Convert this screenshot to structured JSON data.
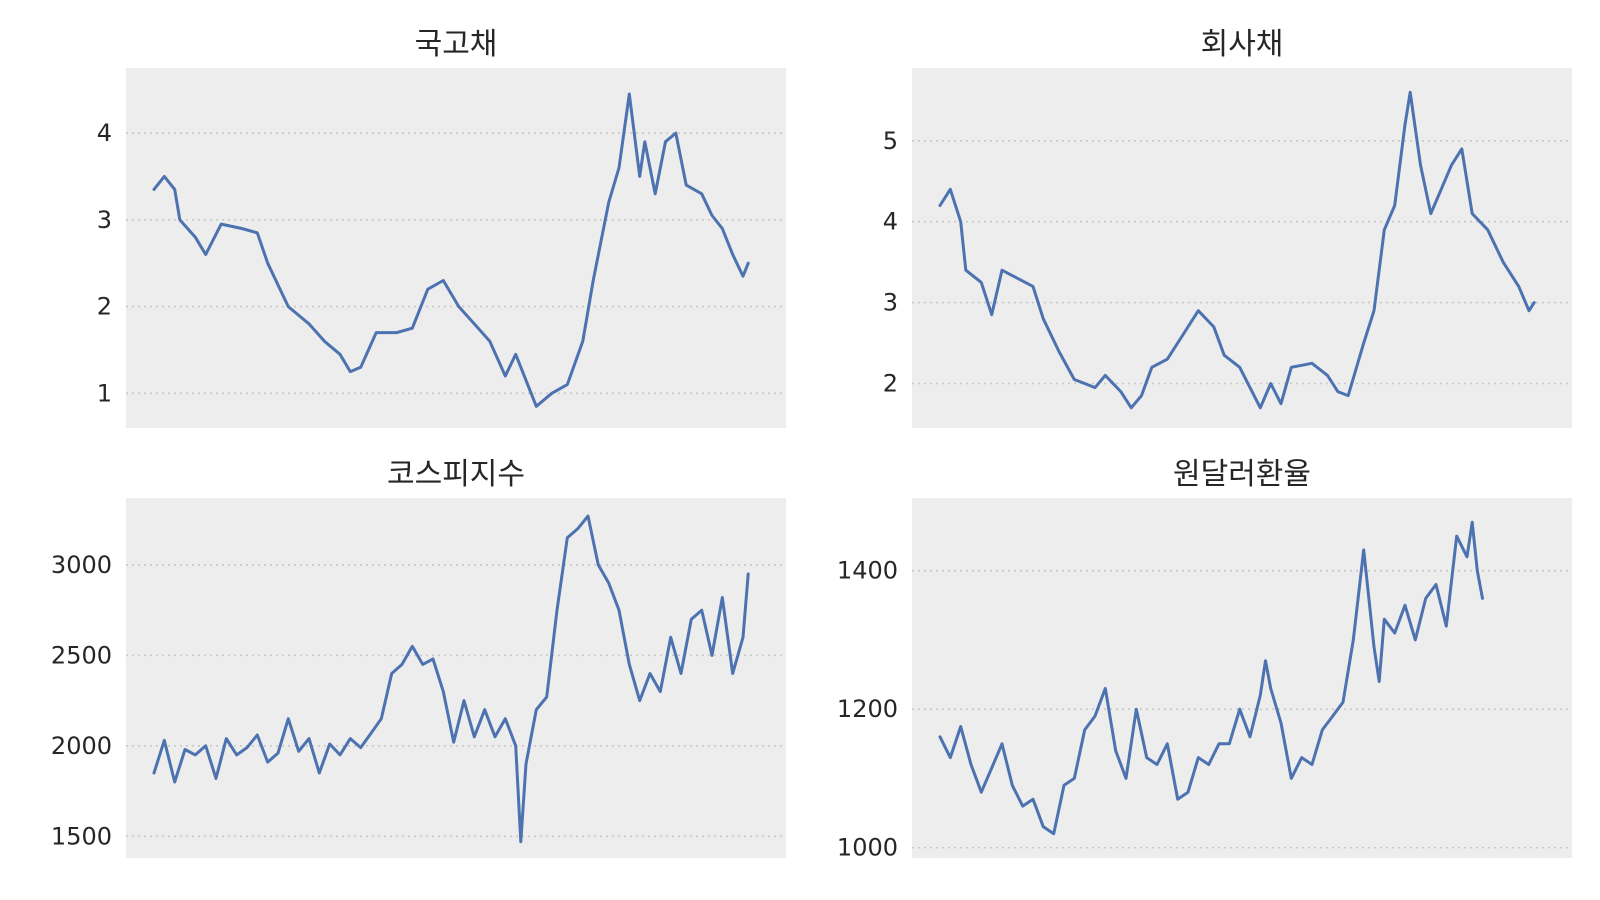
{
  "colors": {
    "line": "#4c72b0",
    "panel_bg": "#ededed",
    "grid": "#c8c8c8",
    "text": "#262626"
  },
  "chart_data": [
    {
      "type": "line",
      "title": "국고채",
      "xlabel": "",
      "ylabel": "",
      "ylim": [
        0.6,
        4.75
      ],
      "yticks": [
        1,
        2,
        3,
        4
      ],
      "ytick_labels": [
        "1",
        "2",
        "3",
        "4"
      ],
      "grid": "horizontal-dotted",
      "series": [
        {
          "values": [
            [
              0,
              3.35
            ],
            [
              0.02,
              3.5
            ],
            [
              0.04,
              3.35
            ],
            [
              0.05,
              3.0
            ],
            [
              0.08,
              2.8
            ],
            [
              0.1,
              2.6
            ],
            [
              0.13,
              2.95
            ],
            [
              0.17,
              2.9
            ],
            [
              0.2,
              2.85
            ],
            [
              0.22,
              2.5
            ],
            [
              0.26,
              2.0
            ],
            [
              0.3,
              1.8
            ],
            [
              0.33,
              1.6
            ],
            [
              0.36,
              1.45
            ],
            [
              0.38,
              1.25
            ],
            [
              0.4,
              1.3
            ],
            [
              0.43,
              1.7
            ],
            [
              0.47,
              1.7
            ],
            [
              0.5,
              1.75
            ],
            [
              0.53,
              2.2
            ],
            [
              0.56,
              2.3
            ],
            [
              0.59,
              2.0
            ],
            [
              0.62,
              1.8
            ],
            [
              0.65,
              1.6
            ],
            [
              0.68,
              1.2
            ],
            [
              0.7,
              1.45
            ],
            [
              0.72,
              1.15
            ],
            [
              0.74,
              0.85
            ],
            [
              0.77,
              1.0
            ],
            [
              0.8,
              1.1
            ],
            [
              0.83,
              1.6
            ],
            [
              0.85,
              2.3
            ],
            [
              0.88,
              3.2
            ],
            [
              0.9,
              3.6
            ],
            [
              0.92,
              4.45
            ],
            [
              0.94,
              3.5
            ],
            [
              0.95,
              3.9
            ],
            [
              0.97,
              3.3
            ],
            [
              0.99,
              3.9
            ],
            [
              1.01,
              4.0
            ],
            [
              1.03,
              3.4
            ],
            [
              1.06,
              3.3
            ],
            [
              1.08,
              3.05
            ],
            [
              1.1,
              2.9
            ],
            [
              1.12,
              2.6
            ],
            [
              1.14,
              2.35
            ],
            [
              1.15,
              2.5
            ]
          ]
        }
      ]
    },
    {
      "type": "line",
      "title": "회사채",
      "xlabel": "",
      "ylabel": "",
      "ylim": [
        1.45,
        5.9
      ],
      "yticks": [
        2,
        3,
        4,
        5
      ],
      "ytick_labels": [
        "2",
        "3",
        "4",
        "5"
      ],
      "grid": "horizontal-dotted",
      "series": [
        {
          "values": [
            [
              0,
              4.2
            ],
            [
              0.02,
              4.4
            ],
            [
              0.04,
              4.0
            ],
            [
              0.05,
              3.4
            ],
            [
              0.08,
              3.25
            ],
            [
              0.1,
              2.85
            ],
            [
              0.12,
              3.4
            ],
            [
              0.15,
              3.3
            ],
            [
              0.18,
              3.2
            ],
            [
              0.2,
              2.8
            ],
            [
              0.23,
              2.4
            ],
            [
              0.26,
              2.05
            ],
            [
              0.28,
              2.0
            ],
            [
              0.3,
              1.95
            ],
            [
              0.32,
              2.1
            ],
            [
              0.35,
              1.9
            ],
            [
              0.37,
              1.7
            ],
            [
              0.39,
              1.85
            ],
            [
              0.41,
              2.2
            ],
            [
              0.44,
              2.3
            ],
            [
              0.47,
              2.6
            ],
            [
              0.5,
              2.9
            ],
            [
              0.53,
              2.7
            ],
            [
              0.55,
              2.35
            ],
            [
              0.58,
              2.2
            ],
            [
              0.6,
              1.95
            ],
            [
              0.62,
              1.7
            ],
            [
              0.64,
              2.0
            ],
            [
              0.66,
              1.75
            ],
            [
              0.68,
              2.2
            ],
            [
              0.72,
              2.25
            ],
            [
              0.75,
              2.1
            ],
            [
              0.77,
              1.9
            ],
            [
              0.79,
              1.85
            ],
            [
              0.82,
              2.5
            ],
            [
              0.84,
              2.9
            ],
            [
              0.86,
              3.9
            ],
            [
              0.88,
              4.2
            ],
            [
              0.9,
              5.2
            ],
            [
              0.91,
              5.6
            ],
            [
              0.93,
              4.7
            ],
            [
              0.95,
              4.1
            ],
            [
              0.97,
              4.4
            ],
            [
              0.99,
              4.7
            ],
            [
              1.01,
              4.9
            ],
            [
              1.03,
              4.1
            ],
            [
              1.06,
              3.9
            ],
            [
              1.09,
              3.5
            ],
            [
              1.12,
              3.2
            ],
            [
              1.14,
              2.9
            ],
            [
              1.15,
              3.0
            ]
          ]
        }
      ]
    },
    {
      "type": "line",
      "title": "코스피지수",
      "xlabel": "",
      "ylabel": "",
      "ylim": [
        1380,
        3370
      ],
      "yticks": [
        1500,
        2000,
        2500,
        3000
      ],
      "ytick_labels": [
        "1500",
        "2000",
        "2500",
        "3000"
      ],
      "grid": "horizontal-dotted",
      "series": [
        {
          "values": [
            [
              0,
              1850
            ],
            [
              0.02,
              2030
            ],
            [
              0.04,
              1800
            ],
            [
              0.06,
              1980
            ],
            [
              0.08,
              1950
            ],
            [
              0.1,
              2000
            ],
            [
              0.12,
              1820
            ],
            [
              0.14,
              2040
            ],
            [
              0.16,
              1950
            ],
            [
              0.18,
              1990
            ],
            [
              0.2,
              2060
            ],
            [
              0.22,
              1910
            ],
            [
              0.24,
              1960
            ],
            [
              0.26,
              2150
            ],
            [
              0.28,
              1970
            ],
            [
              0.3,
              2040
            ],
            [
              0.32,
              1850
            ],
            [
              0.34,
              2010
            ],
            [
              0.36,
              1950
            ],
            [
              0.38,
              2040
            ],
            [
              0.4,
              1990
            ],
            [
              0.42,
              2070
            ],
            [
              0.44,
              2150
            ],
            [
              0.46,
              2400
            ],
            [
              0.48,
              2450
            ],
            [
              0.5,
              2550
            ],
            [
              0.52,
              2450
            ],
            [
              0.54,
              2480
            ],
            [
              0.56,
              2300
            ],
            [
              0.58,
              2020
            ],
            [
              0.6,
              2250
            ],
            [
              0.62,
              2050
            ],
            [
              0.64,
              2200
            ],
            [
              0.66,
              2050
            ],
            [
              0.68,
              2150
            ],
            [
              0.7,
              2000
            ],
            [
              0.71,
              1470
            ],
            [
              0.72,
              1900
            ],
            [
              0.74,
              2200
            ],
            [
              0.76,
              2270
            ],
            [
              0.78,
              2750
            ],
            [
              0.8,
              3150
            ],
            [
              0.82,
              3200
            ],
            [
              0.84,
              3270
            ],
            [
              0.86,
              3000
            ],
            [
              0.88,
              2900
            ],
            [
              0.9,
              2750
            ],
            [
              0.92,
              2450
            ],
            [
              0.94,
              2250
            ],
            [
              0.96,
              2400
            ],
            [
              0.98,
              2300
            ],
            [
              1.0,
              2600
            ],
            [
              1.02,
              2400
            ],
            [
              1.04,
              2700
            ],
            [
              1.06,
              2750
            ],
            [
              1.08,
              2500
            ],
            [
              1.1,
              2820
            ],
            [
              1.12,
              2400
            ],
            [
              1.14,
              2600
            ],
            [
              1.15,
              2950
            ]
          ]
        }
      ]
    },
    {
      "type": "line",
      "title": "원달러환율",
      "xlabel": "",
      "ylabel": "",
      "ylim": [
        985,
        1505
      ],
      "yticks": [
        1000,
        1200,
        1400
      ],
      "ytick_labels": [
        "1000",
        "1200",
        "1400"
      ],
      "grid": "horizontal-dotted",
      "series": [
        {
          "values": [
            [
              0,
              1160
            ],
            [
              0.02,
              1130
            ],
            [
              0.04,
              1175
            ],
            [
              0.06,
              1120
            ],
            [
              0.08,
              1080
            ],
            [
              0.1,
              1115
            ],
            [
              0.12,
              1150
            ],
            [
              0.14,
              1090
            ],
            [
              0.16,
              1060
            ],
            [
              0.18,
              1070
            ],
            [
              0.2,
              1030
            ],
            [
              0.22,
              1020
            ],
            [
              0.24,
              1090
            ],
            [
              0.26,
              1100
            ],
            [
              0.28,
              1170
            ],
            [
              0.3,
              1190
            ],
            [
              0.32,
              1230
            ],
            [
              0.34,
              1140
            ],
            [
              0.36,
              1100
            ],
            [
              0.38,
              1200
            ],
            [
              0.4,
              1130
            ],
            [
              0.42,
              1120
            ],
            [
              0.44,
              1150
            ],
            [
              0.46,
              1070
            ],
            [
              0.48,
              1080
            ],
            [
              0.5,
              1130
            ],
            [
              0.52,
              1120
            ],
            [
              0.54,
              1150
            ],
            [
              0.56,
              1150
            ],
            [
              0.58,
              1200
            ],
            [
              0.6,
              1160
            ],
            [
              0.62,
              1220
            ],
            [
              0.63,
              1270
            ],
            [
              0.64,
              1230
            ],
            [
              0.66,
              1180
            ],
            [
              0.68,
              1100
            ],
            [
              0.7,
              1130
            ],
            [
              0.72,
              1120
            ],
            [
              0.74,
              1170
            ],
            [
              0.76,
              1190
            ],
            [
              0.78,
              1210
            ],
            [
              0.8,
              1300
            ],
            [
              0.82,
              1430
            ],
            [
              0.84,
              1290
            ],
            [
              0.85,
              1240
            ],
            [
              0.86,
              1330
            ],
            [
              0.88,
              1310
            ],
            [
              0.9,
              1350
            ],
            [
              0.92,
              1300
            ],
            [
              0.94,
              1360
            ],
            [
              0.96,
              1380
            ],
            [
              0.98,
              1320
            ],
            [
              1.0,
              1450
            ],
            [
              1.02,
              1420
            ],
            [
              1.03,
              1470
            ],
            [
              1.04,
              1400
            ],
            [
              1.05,
              1360
            ]
          ]
        }
      ]
    }
  ]
}
